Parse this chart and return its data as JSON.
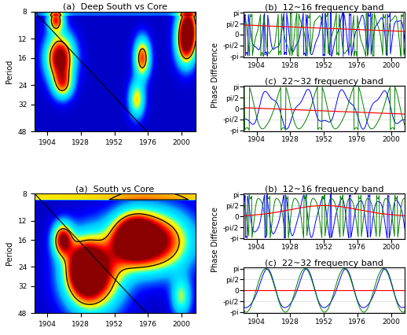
{
  "titles": {
    "top_left": "(a)  Deep South vs Core",
    "top_right_b": "(b)  12~16 frequency band",
    "top_right_c": "(c)  22~32 frequency band",
    "bot_left": "(a)  South vs Core",
    "bot_right_b": "(b)  12~16 frequency band",
    "bot_right_c": "(c)  22~32 frequency band"
  },
  "ylabel_left": "Period",
  "ylabel_right": "Phase Difference",
  "yticks_left": [
    8,
    12,
    16,
    24,
    32,
    48
  ],
  "yticks_right_labels": [
    "pi",
    "pi/2",
    "0",
    "-pi/2",
    "-pi"
  ],
  "yticks_right_vals": [
    3.14159,
    1.5708,
    0,
    -1.5708,
    -3.14159
  ],
  "xticks": [
    1904,
    1928,
    1952,
    1976,
    2000
  ],
  "xlim": [
    1895,
    2010
  ],
  "title_fontsize": 8,
  "tick_fontsize": 6.5,
  "label_fontsize": 7
}
